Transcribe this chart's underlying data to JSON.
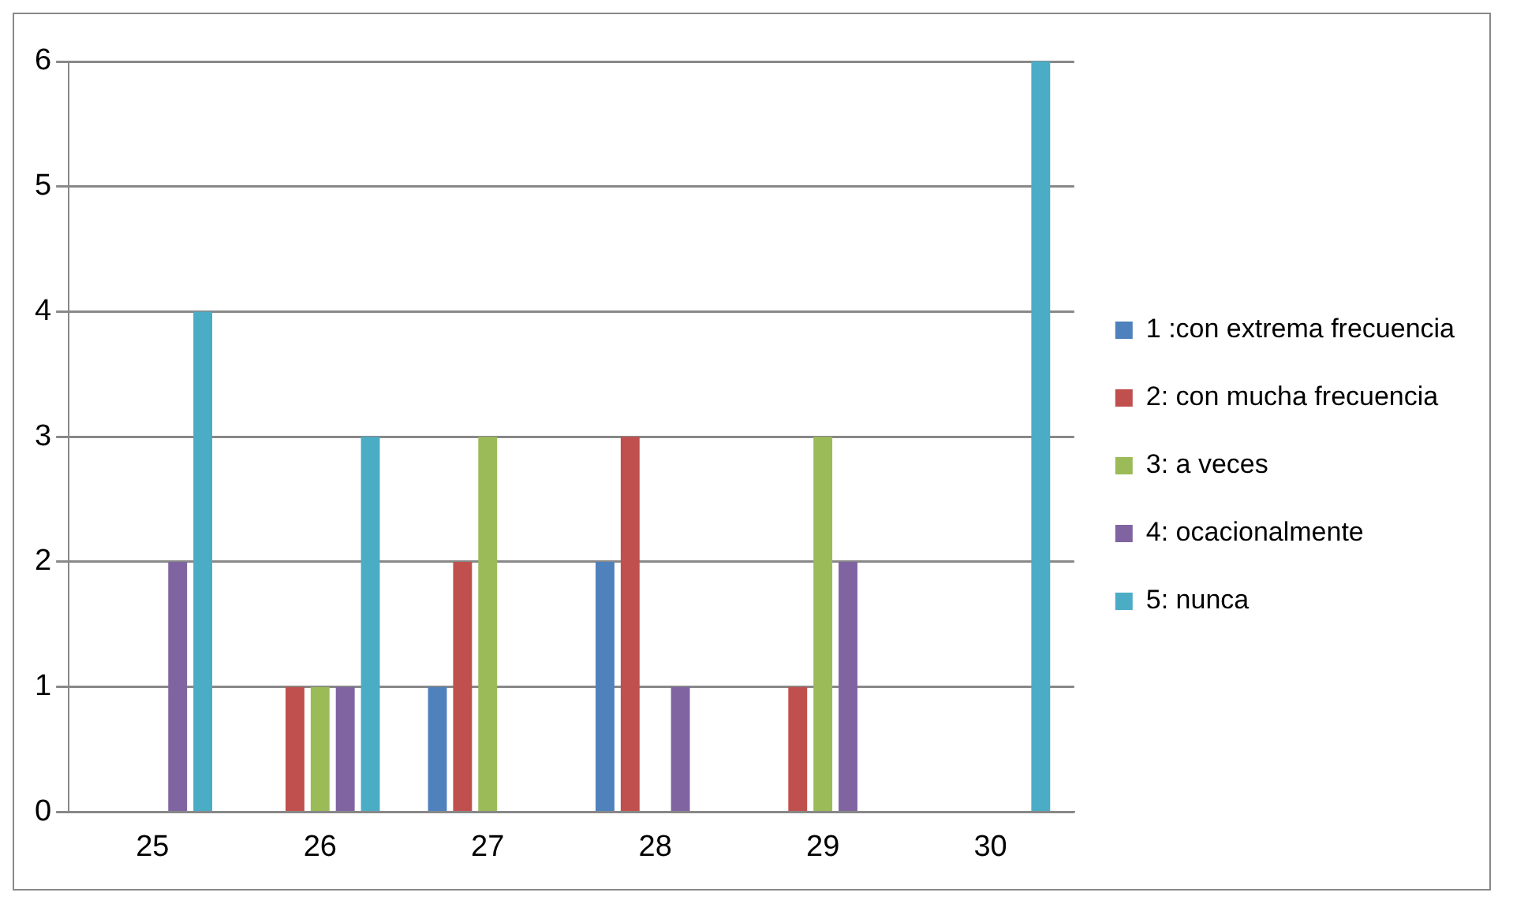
{
  "chart_data": {
    "type": "bar",
    "categories": [
      "25",
      "26",
      "27",
      "28",
      "29",
      "30"
    ],
    "series": [
      {
        "name": "1 :con extrema frecuencia",
        "color": "#4f81bd",
        "values": [
          0,
          0,
          1,
          2,
          0,
          0
        ]
      },
      {
        "name": "2: con mucha frecuencia",
        "color": "#c0504d",
        "values": [
          0,
          1,
          2,
          3,
          1,
          0
        ]
      },
      {
        "name": "3: a veces",
        "color": "#9bbb59",
        "values": [
          0,
          1,
          3,
          0,
          3,
          0
        ]
      },
      {
        "name": "4: ocacionalmente",
        "color": "#8064a2",
        "values": [
          2,
          1,
          0,
          1,
          2,
          0
        ]
      },
      {
        "name": "5: nunca",
        "color": "#4bacc6",
        "values": [
          4,
          3,
          0,
          0,
          0,
          6
        ]
      }
    ],
    "ylim": [
      0,
      6
    ],
    "yticks": [
      0,
      1,
      2,
      3,
      4,
      5,
      6
    ],
    "grid": "y",
    "legend": "right"
  }
}
